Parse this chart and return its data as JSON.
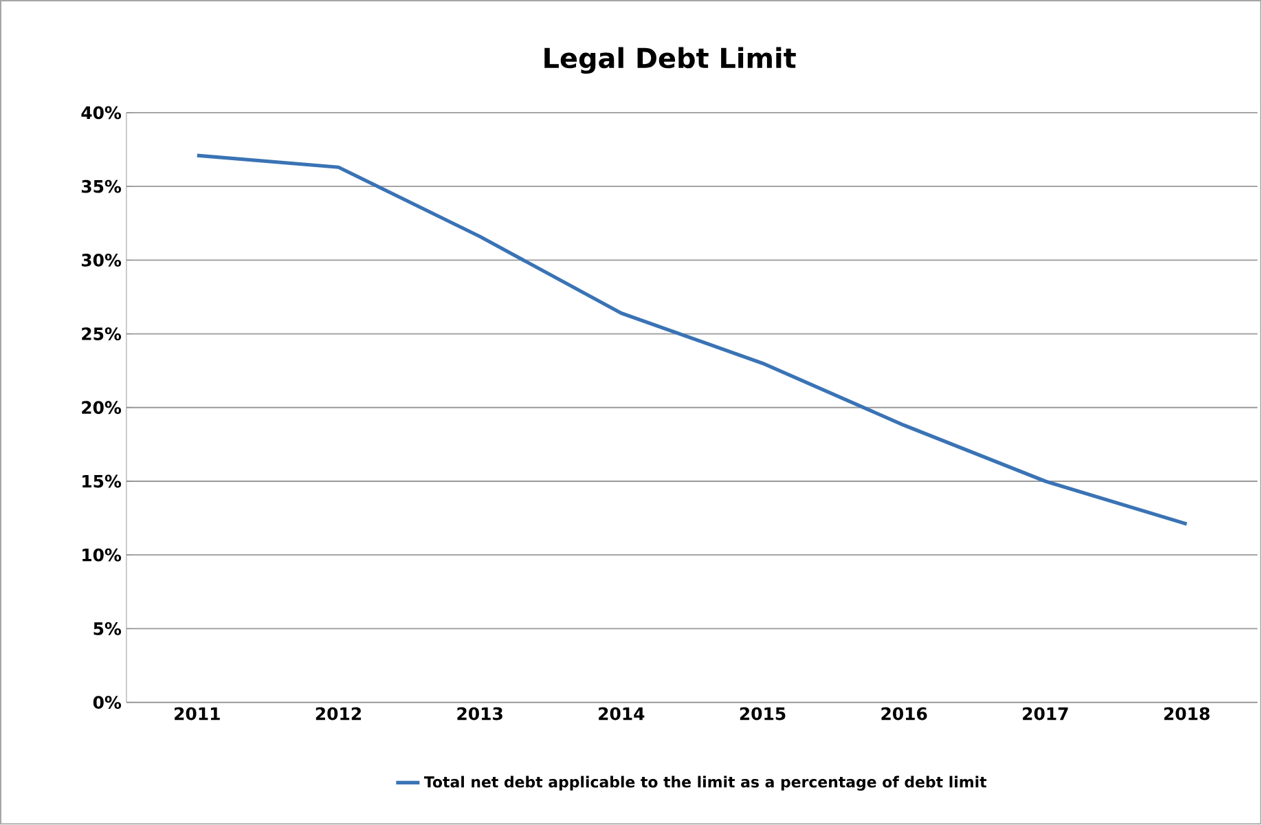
{
  "chart_data": {
    "type": "line",
    "title": "Legal Debt Limit",
    "categories": [
      "2011",
      "2012",
      "2013",
      "2014",
      "2015",
      "2016",
      "2017",
      "2018"
    ],
    "series": [
      {
        "name": "Total net debt applicable to the limit as a percentage of debt limit",
        "color": "#3a73b5",
        "values": [
          37.1,
          36.3,
          31.6,
          26.4,
          23.0,
          18.8,
          15.0,
          12.1
        ]
      }
    ],
    "ylim": [
      0,
      40
    ],
    "yticks": [
      {
        "value": 0,
        "label": "0%"
      },
      {
        "value": 5,
        "label": "5%"
      },
      {
        "value": 10,
        "label": "10%"
      },
      {
        "value": 15,
        "label": "15%"
      },
      {
        "value": 20,
        "label": "20%"
      },
      {
        "value": 25,
        "label": "25%"
      },
      {
        "value": 30,
        "label": "30%"
      },
      {
        "value": 35,
        "label": "35%"
      },
      {
        "value": 40,
        "label": "40%"
      }
    ],
    "grid": "y",
    "legend": "bottom",
    "marker": "none",
    "line_style": "solid"
  }
}
